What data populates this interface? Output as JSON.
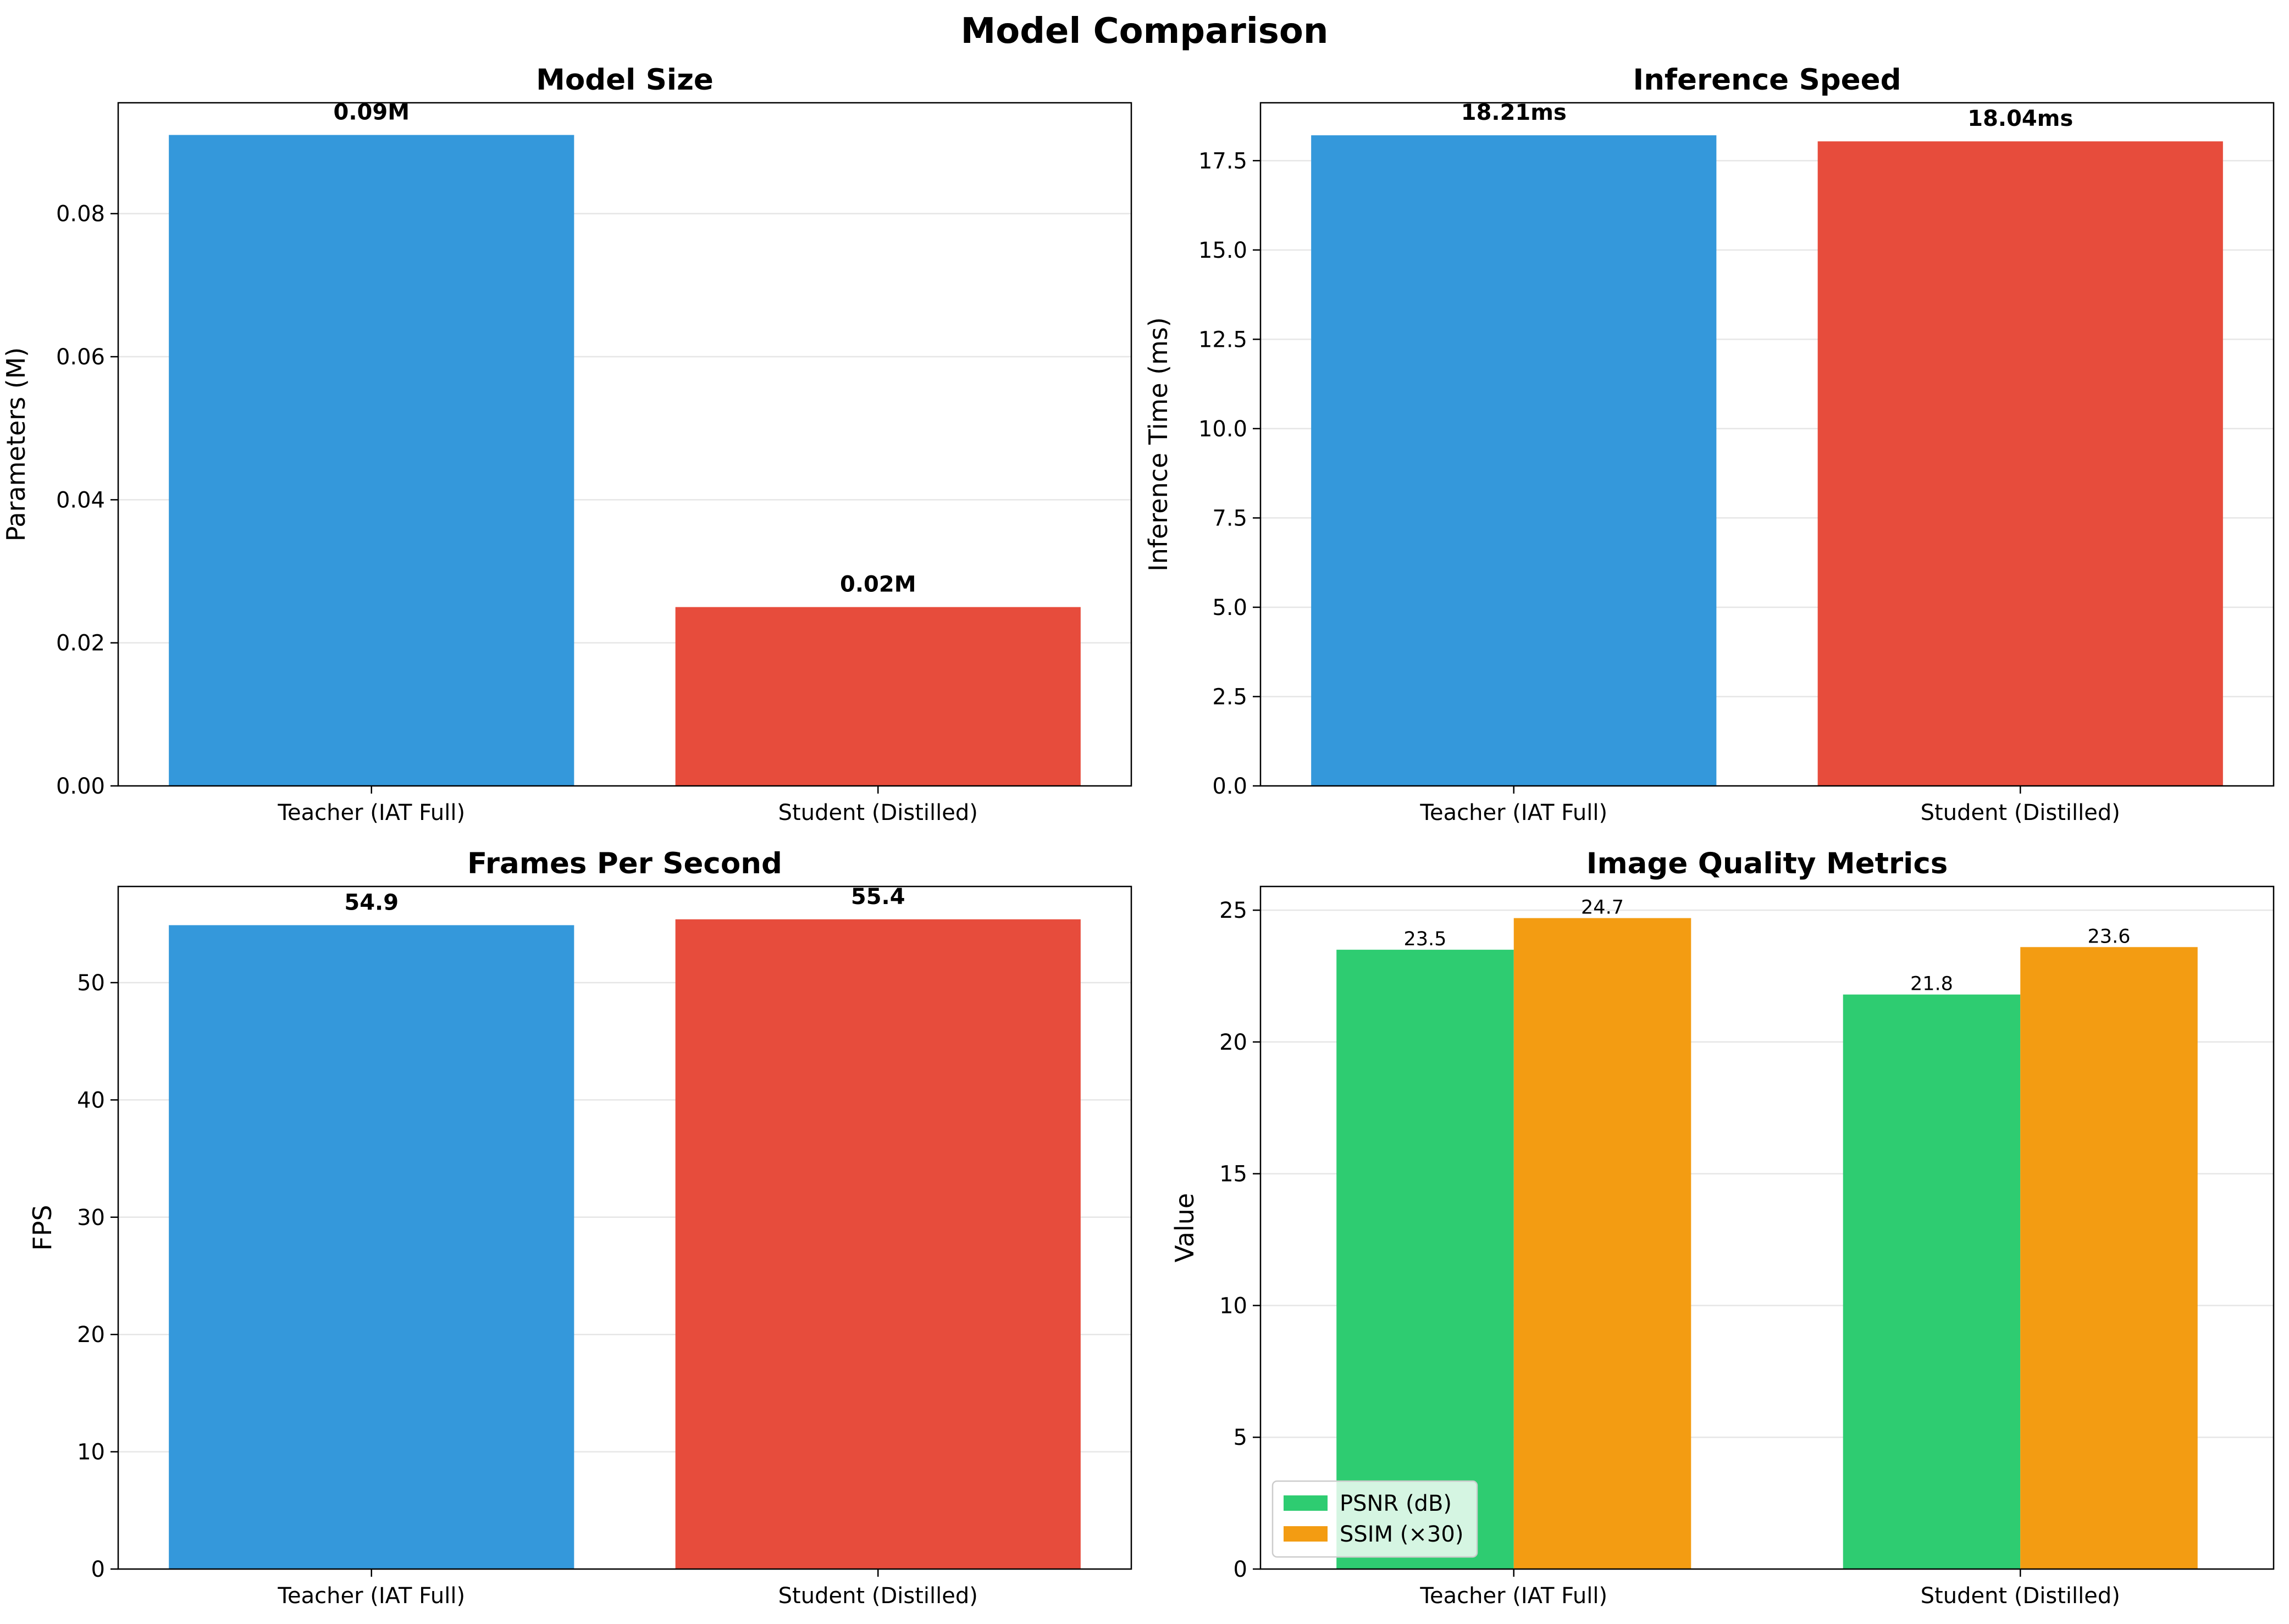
{
  "figure_title": "Model Comparison",
  "chart_data": [
    {
      "id": "model-size",
      "type": "bar",
      "title": "Model Size",
      "xlabel": "",
      "ylabel": "Parameters (M)",
      "categories": [
        "Teacher (IAT Full)",
        "Student (Distilled)"
      ],
      "values": [
        0.091,
        0.025
      ],
      "value_labels": [
        "0.09M",
        "0.02M"
      ],
      "colors": [
        "#3498db",
        "#e74c3c"
      ],
      "ylim": [
        0,
        0.0955
      ],
      "yticks": [
        0.0,
        0.02,
        0.04,
        0.06,
        0.08
      ],
      "ytick_labels": [
        "0.00",
        "0.02",
        "0.04",
        "0.06",
        "0.08"
      ],
      "grid": "y"
    },
    {
      "id": "inference-speed",
      "type": "bar",
      "title": "Inference Speed",
      "xlabel": "",
      "ylabel": "Inference Time (ms)",
      "categories": [
        "Teacher (IAT Full)",
        "Student (Distilled)"
      ],
      "values": [
        18.21,
        18.04
      ],
      "value_labels": [
        "18.21ms",
        "18.04ms"
      ],
      "colors": [
        "#3498db",
        "#e74c3c"
      ],
      "ylim": [
        0,
        19.12
      ],
      "yticks": [
        0.0,
        2.5,
        5.0,
        7.5,
        10.0,
        12.5,
        15.0,
        17.5
      ],
      "ytick_labels": [
        "0.0",
        "2.5",
        "5.0",
        "7.5",
        "10.0",
        "12.5",
        "15.0",
        "17.5"
      ],
      "grid": "y"
    },
    {
      "id": "fps",
      "type": "bar",
      "title": "Frames Per Second",
      "xlabel": "",
      "ylabel": "FPS",
      "categories": [
        "Teacher (IAT Full)",
        "Student (Distilled)"
      ],
      "values": [
        54.9,
        55.4
      ],
      "value_labels": [
        "54.9",
        "55.4"
      ],
      "colors": [
        "#3498db",
        "#e74c3c"
      ],
      "ylim": [
        0,
        58.2
      ],
      "yticks": [
        0,
        10,
        20,
        30,
        40,
        50
      ],
      "ytick_labels": [
        "0",
        "10",
        "20",
        "30",
        "40",
        "50"
      ],
      "grid": "y"
    },
    {
      "id": "image-quality",
      "type": "bar",
      "title": "Image Quality Metrics",
      "xlabel": "",
      "ylabel": "Value",
      "categories": [
        "Teacher (IAT Full)",
        "Student (Distilled)"
      ],
      "series": [
        {
          "name": "PSNR (dB)",
          "values": [
            23.5,
            21.8
          ],
          "value_labels": [
            "23.5",
            "21.8"
          ],
          "color": "#2ecc71"
        },
        {
          "name": "SSIM (×30)",
          "values": [
            24.7,
            23.6
          ],
          "value_labels": [
            "24.7",
            "23.6"
          ],
          "color": "#f39c12"
        }
      ],
      "ylim": [
        0,
        25.9
      ],
      "yticks": [
        0,
        5,
        10,
        15,
        20,
        25
      ],
      "ytick_labels": [
        "0",
        "5",
        "10",
        "15",
        "20",
        "25"
      ],
      "legend": "lower-left",
      "grid": "y"
    }
  ]
}
